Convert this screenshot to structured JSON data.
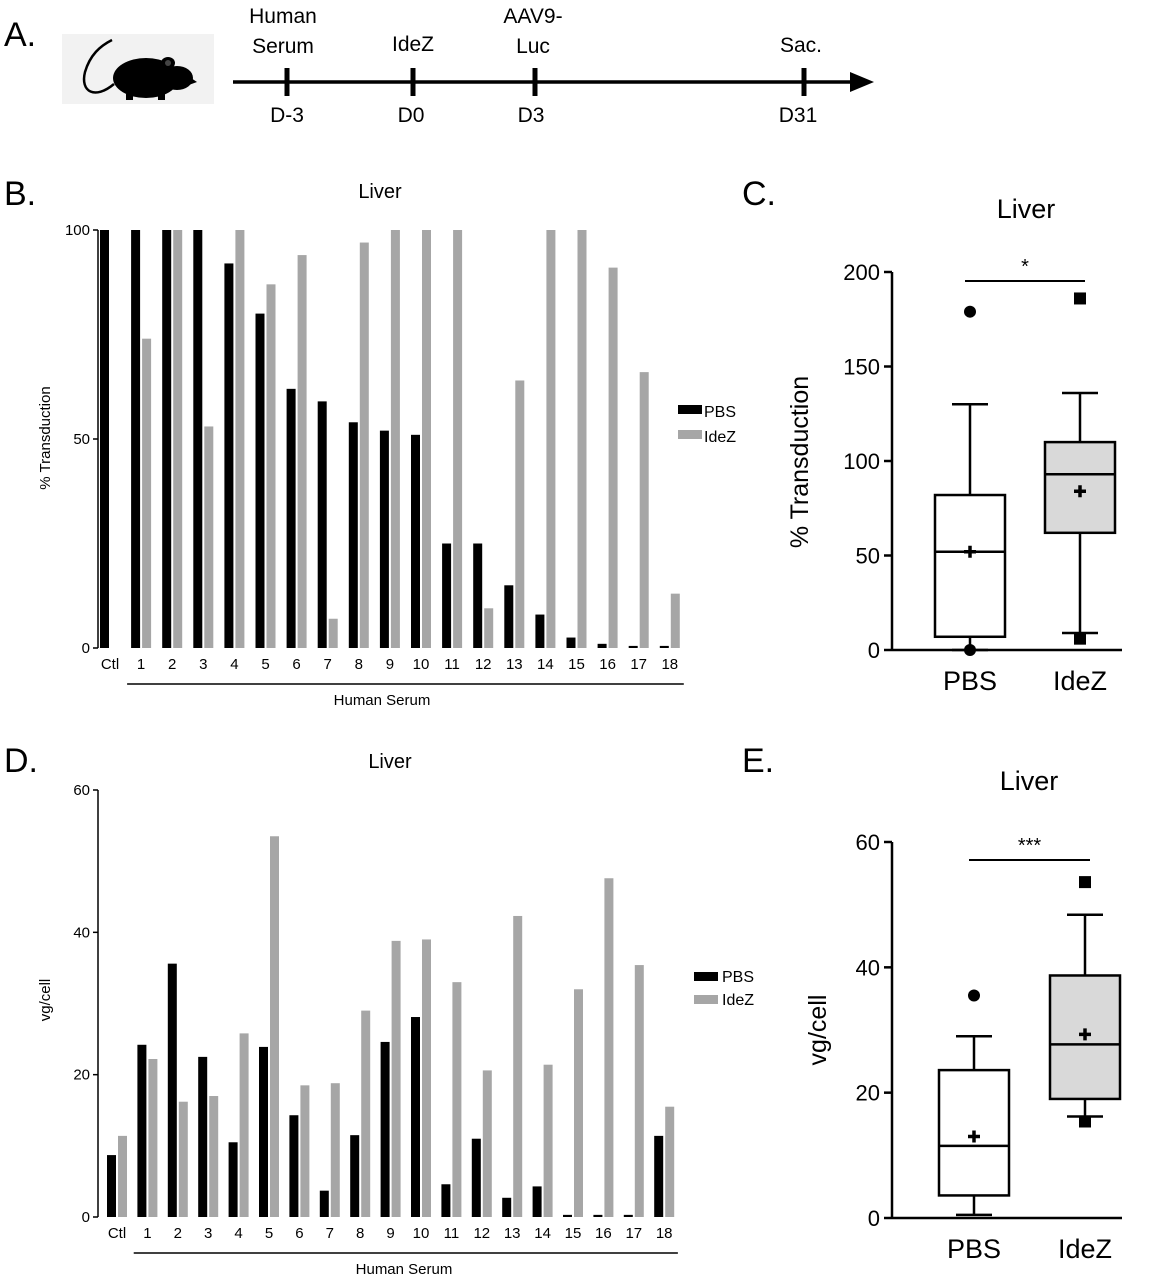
{
  "timeline": {
    "panel_label": "A.",
    "events": [
      {
        "top": [
          "Human",
          "Serum"
        ],
        "day": "D-3"
      },
      {
        "top": [
          "IdeZ"
        ],
        "day": "D0"
      },
      {
        "top": [
          "AAV9-",
          "Luc"
        ],
        "day": "D3"
      },
      {
        "top": [
          "Sac."
        ],
        "day": "D31"
      }
    ]
  },
  "chart_data": [
    {
      "panel_label": "B.",
      "type": "bar",
      "title": "Liver",
      "xlabel": "Human Serum",
      "ylabel": "% Transduction",
      "ylim": [
        0,
        100
      ],
      "yticks": [
        "0",
        "50",
        "100"
      ],
      "categories": [
        "Ctl",
        "1",
        "2",
        "3",
        "4",
        "5",
        "6",
        "7",
        "8",
        "9",
        "10",
        "11",
        "12",
        "13",
        "14",
        "15",
        "16",
        "17",
        "18"
      ],
      "series": [
        {
          "name": "PBS",
          "color": "#000000",
          "values": [
            100,
            100,
            100,
            100,
            92,
            80,
            62,
            59,
            54,
            52,
            51,
            25,
            25,
            15,
            8,
            2.5,
            1,
            0.5,
            0.5
          ]
        },
        {
          "name": "IdeZ",
          "color": "#a6a6a6",
          "values": [
            null,
            74,
            100,
            53,
            100,
            87,
            94,
            7,
            97,
            100,
            100,
            100,
            9.5,
            64,
            100,
            100,
            91,
            66,
            13
          ]
        }
      ],
      "legend": "right"
    },
    {
      "panel_label": "C.",
      "type": "box",
      "title": "Liver",
      "ylabel": "% Transduction",
      "ylim": [
        0,
        200
      ],
      "yticks": [
        "0",
        "50",
        "100",
        "150",
        "200"
      ],
      "categories": [
        "PBS",
        "IdeZ"
      ],
      "boxes": [
        {
          "whisker_low": 0,
          "q1": 7,
          "median": 52,
          "q3": 82,
          "whisker_high": 130,
          "mean": 52,
          "outliers": [
            179,
            0
          ],
          "fill": "#ffffff",
          "marker": "circle"
        },
        {
          "whisker_low": 9,
          "q1": 62,
          "median": 93,
          "q3": 110,
          "whisker_high": 136,
          "mean": 84,
          "outliers": [
            186,
            6
          ],
          "fill": "#d9d9d9",
          "marker": "square"
        }
      ],
      "significance": "*"
    },
    {
      "panel_label": "D.",
      "type": "bar",
      "title": "Liver",
      "xlabel": "Human Serum",
      "ylabel": "vg/cell",
      "ylim": [
        0,
        60
      ],
      "yticks": [
        "0",
        "20",
        "40",
        "60"
      ],
      "categories": [
        "Ctl",
        "1",
        "2",
        "3",
        "4",
        "5",
        "6",
        "7",
        "8",
        "9",
        "10",
        "11",
        "12",
        "13",
        "14",
        "15",
        "16",
        "17",
        "18"
      ],
      "series": [
        {
          "name": "PBS",
          "color": "#000000",
          "values": [
            8.7,
            24.2,
            35.6,
            22.5,
            10.5,
            23.9,
            14.3,
            3.7,
            11.5,
            24.6,
            28.1,
            4.6,
            11,
            2.7,
            4.3,
            0.3,
            0.3,
            0.3,
            11.4
          ]
        },
        {
          "name": "IdeZ",
          "color": "#a6a6a6",
          "values": [
            11.4,
            22.2,
            16.2,
            17,
            25.8,
            53.5,
            18.5,
            18.8,
            29,
            38.8,
            39,
            33,
            20.6,
            42.3,
            21.4,
            32,
            47.6,
            35.4,
            15.5
          ]
        }
      ],
      "legend": "right"
    },
    {
      "panel_label": "E.",
      "type": "box",
      "title": "Liver",
      "ylabel": "vg/cell",
      "ylim": [
        0,
        60
      ],
      "yticks": [
        "0",
        "20",
        "40",
        "60"
      ],
      "categories": [
        "PBS",
        "IdeZ"
      ],
      "boxes": [
        {
          "whisker_low": 0.5,
          "q1": 3.6,
          "median": 11.5,
          "q3": 23.6,
          "whisker_high": 29,
          "mean": 13,
          "outliers": [
            35.5
          ],
          "fill": "#ffffff",
          "marker": "circle"
        },
        {
          "whisker_low": 16.2,
          "q1": 19,
          "median": 27.7,
          "q3": 38.7,
          "whisker_high": 48.4,
          "mean": 29.3,
          "outliers": [
            53.6,
            15.4
          ],
          "fill": "#d9d9d9",
          "marker": "square"
        }
      ],
      "significance": "***"
    }
  ]
}
